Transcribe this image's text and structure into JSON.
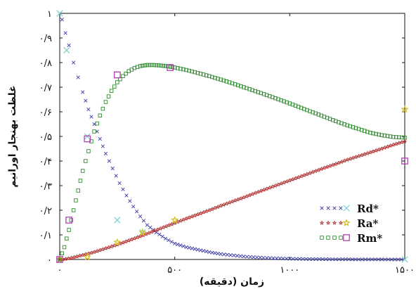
{
  "chart_data": {
    "type": "scatter",
    "xlabel": "زمان (دقیقه)",
    "ylabel": "غلظت بهنجار اورانیم",
    "xlim": [
      0,
      1500
    ],
    "ylim": [
      0,
      1
    ],
    "xticks": [
      {
        "value": 0,
        "label": "۰"
      },
      {
        "value": 500,
        "label": "۵۰۰"
      },
      {
        "value": 1000,
        "label": "۱۰۰۰"
      },
      {
        "value": 1500,
        "label": "۱۵۰۰"
      }
    ],
    "yticks": [
      {
        "value": 0,
        "label": "۰"
      },
      {
        "value": 0.1,
        "label": "۰/۱"
      },
      {
        "value": 0.2,
        "label": "۰/۲"
      },
      {
        "value": 0.3,
        "label": "۰/۳"
      },
      {
        "value": 0.4,
        "label": "۰/۴"
      },
      {
        "value": 0.5,
        "label": "۰/۵"
      },
      {
        "value": 0.6,
        "label": "۰/۶"
      },
      {
        "value": 0.7,
        "label": "۰/۷"
      },
      {
        "value": 0.8,
        "label": "۰/۸"
      },
      {
        "value": 0.9,
        "label": "۰/۹"
      },
      {
        "value": 1,
        "label": "۱"
      }
    ],
    "legend_position": "bottom-right",
    "series": [
      {
        "name": "Rd*",
        "model_color": "#3a3aa8",
        "exp_color": "#7fd0d0",
        "model_marker": "x",
        "exp_marker": "x",
        "model": [
          [
            0,
            1
          ],
          [
            10,
            0.975
          ],
          [
            25,
            0.92
          ],
          [
            40,
            0.87
          ],
          [
            60,
            0.8
          ],
          [
            80,
            0.74
          ],
          [
            100,
            0.68
          ],
          [
            125,
            0.61
          ],
          [
            150,
            0.55
          ],
          [
            175,
            0.49
          ],
          [
            200,
            0.43
          ],
          [
            230,
            0.37
          ],
          [
            260,
            0.31
          ],
          [
            290,
            0.26
          ],
          [
            320,
            0.215
          ],
          [
            350,
            0.175
          ],
          [
            380,
            0.14
          ],
          [
            420,
            0.11
          ],
          [
            460,
            0.085
          ],
          [
            500,
            0.065
          ],
          [
            550,
            0.05
          ],
          [
            600,
            0.04
          ],
          [
            650,
            0.03
          ],
          [
            700,
            0.022
          ],
          [
            800,
            0.012
          ],
          [
            900,
            0.006
          ],
          [
            1000,
            0.003
          ],
          [
            1100,
            0.0015
          ],
          [
            1200,
            0.0008
          ],
          [
            1300,
            0.0004
          ],
          [
            1400,
            0.0002
          ],
          [
            1500,
            0.0001
          ]
        ],
        "experimental": [
          [
            0,
            1
          ],
          [
            30,
            0.85
          ],
          [
            120,
            0.5
          ],
          [
            250,
            0.16
          ],
          [
            360,
            0.11
          ],
          [
            1500,
            0
          ]
        ]
      },
      {
        "name": "Ra*",
        "model_color": "#b03030",
        "exp_color": "#d4c020",
        "model_marker": "star",
        "exp_marker": "star",
        "model": [
          [
            0,
            0
          ],
          [
            25,
            0.002
          ],
          [
            50,
            0.006
          ],
          [
            75,
            0.012
          ],
          [
            100,
            0.018
          ],
          [
            150,
            0.03
          ],
          [
            200,
            0.045
          ],
          [
            250,
            0.06
          ],
          [
            300,
            0.077
          ],
          [
            350,
            0.094
          ],
          [
            400,
            0.112
          ],
          [
            450,
            0.13
          ],
          [
            500,
            0.148
          ],
          [
            550,
            0.166
          ],
          [
            600,
            0.183
          ],
          [
            650,
            0.2
          ],
          [
            700,
            0.218
          ],
          [
            750,
            0.235
          ],
          [
            800,
            0.252
          ],
          [
            850,
            0.27
          ],
          [
            900,
            0.287
          ],
          [
            950,
            0.304
          ],
          [
            1000,
            0.321
          ],
          [
            1050,
            0.338
          ],
          [
            1100,
            0.355
          ],
          [
            1150,
            0.372
          ],
          [
            1200,
            0.388
          ],
          [
            1250,
            0.405
          ],
          [
            1300,
            0.42
          ],
          [
            1350,
            0.435
          ],
          [
            1400,
            0.45
          ],
          [
            1450,
            0.466
          ],
          [
            1500,
            0.48
          ]
        ],
        "experimental": [
          [
            0,
            0
          ],
          [
            120,
            0.01
          ],
          [
            250,
            0.07
          ],
          [
            360,
            0.11
          ],
          [
            500,
            0.16
          ],
          [
            1500,
            0.61
          ]
        ]
      },
      {
        "name": "Rm*",
        "model_color": "#2f8a2f",
        "exp_color": "#b040b0",
        "model_marker": "square",
        "exp_marker": "square",
        "model": [
          [
            0,
            0
          ],
          [
            20,
            0.05
          ],
          [
            40,
            0.12
          ],
          [
            60,
            0.2
          ],
          [
            80,
            0.28
          ],
          [
            100,
            0.36
          ],
          [
            125,
            0.44
          ],
          [
            150,
            0.52
          ],
          [
            175,
            0.585
          ],
          [
            200,
            0.64
          ],
          [
            225,
            0.685
          ],
          [
            250,
            0.72
          ],
          [
            275,
            0.745
          ],
          [
            300,
            0.765
          ],
          [
            325,
            0.778
          ],
          [
            350,
            0.786
          ],
          [
            380,
            0.79
          ],
          [
            410,
            0.79
          ],
          [
            440,
            0.788
          ],
          [
            470,
            0.785
          ],
          [
            500,
            0.78
          ],
          [
            550,
            0.77
          ],
          [
            600,
            0.758
          ],
          [
            650,
            0.745
          ],
          [
            700,
            0.731
          ],
          [
            750,
            0.716
          ],
          [
            800,
            0.7
          ],
          [
            850,
            0.684
          ],
          [
            900,
            0.668
          ],
          [
            950,
            0.651
          ],
          [
            1000,
            0.634
          ],
          [
            1050,
            0.616
          ],
          [
            1100,
            0.598
          ],
          [
            1150,
            0.58
          ],
          [
            1200,
            0.562
          ],
          [
            1250,
            0.545
          ],
          [
            1300,
            0.53
          ],
          [
            1350,
            0.515
          ],
          [
            1400,
            0.505
          ],
          [
            1450,
            0.498
          ],
          [
            1500,
            0.495
          ]
        ],
        "experimental": [
          [
            0,
            0
          ],
          [
            40,
            0.16
          ],
          [
            120,
            0.49
          ],
          [
            250,
            0.75
          ],
          [
            480,
            0.78
          ],
          [
            1500,
            0.4
          ]
        ]
      }
    ]
  }
}
